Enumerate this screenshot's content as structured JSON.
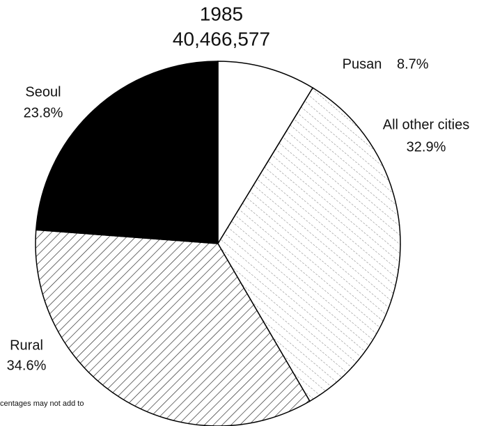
{
  "chart_data": {
    "type": "pie",
    "title": "1985",
    "subtitle": "40,466,577",
    "categories": [
      "Pusan",
      "All other cities",
      "Rural",
      "Seoul"
    ],
    "values": [
      8.7,
      32.9,
      34.6,
      23.8
    ],
    "value_labels": [
      "8.7%",
      "32.9%",
      "34.6%",
      "23.8%"
    ],
    "colors": [
      "#ffffff",
      "pattern-light",
      "pattern-dense",
      "#000000"
    ],
    "footnote": "centages may not add to"
  }
}
